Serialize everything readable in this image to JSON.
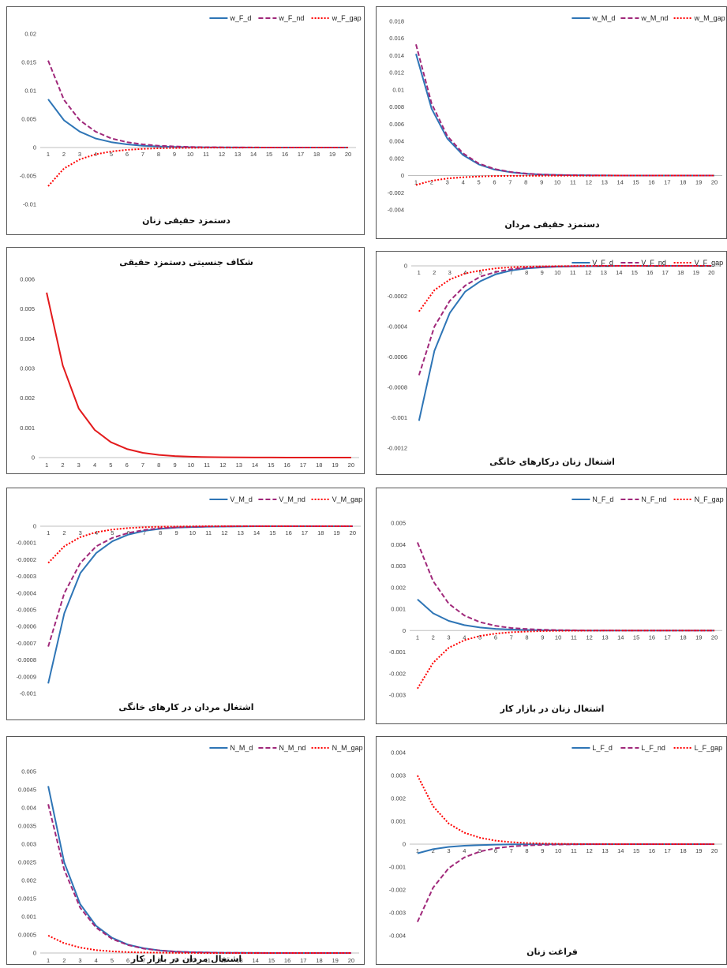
{
  "chart_data": [
    {
      "type": "line",
      "title": "دستمزد حقیقی زنان",
      "x": [
        1,
        2,
        3,
        4,
        5,
        6,
        7,
        8,
        9,
        10,
        11,
        12,
        13,
        14,
        15,
        16,
        17,
        18,
        19,
        20
      ],
      "ylim": [
        -0.01,
        0.02
      ],
      "yticks": [
        -0.01,
        -0.005,
        0,
        0.005,
        0.01,
        0.015,
        0.02
      ],
      "ytick_labels": [
        "-0.01",
        "-0.005",
        "0",
        "0.005",
        "0.01",
        "0.015",
        "0.02"
      ],
      "legend": "top-right",
      "series": [
        {
          "name": "w_F_d",
          "style": "solid",
          "color": "#2e75b6",
          "values": [
            0.0085,
            0.0048,
            0.0028,
            0.0016,
            0.00095,
            0.00055,
            0.00032,
            0.00019,
            0.00011,
            6e-05,
            3.5e-05,
            2e-05,
            1e-05,
            6e-06,
            3e-06,
            2e-06,
            1e-06,
            0,
            0,
            0
          ]
        },
        {
          "name": "w_F_nd",
          "style": "dashed",
          "color": "#a0287a",
          "values": [
            0.0153,
            0.0084,
            0.0048,
            0.0028,
            0.0016,
            0.00095,
            0.00055,
            0.00032,
            0.00019,
            0.00011,
            6e-05,
            3.5e-05,
            2e-05,
            1e-05,
            6e-06,
            3e-06,
            2e-06,
            1e-06,
            0,
            0
          ]
        },
        {
          "name": "w_F_gap",
          "style": "dotted",
          "color": "#ff0000",
          "values": [
            -0.0068,
            -0.0037,
            -0.0021,
            -0.0012,
            -0.0007,
            -0.0004,
            -0.00023,
            -0.00013,
            -8e-05,
            -5e-05,
            -3e-05,
            -1.5e-05,
            -8e-06,
            -4e-06,
            -2e-06,
            -1e-06,
            0,
            0,
            0,
            0
          ]
        }
      ]
    },
    {
      "type": "line",
      "title": "دستمزد حقیقی مردان",
      "x": [
        1,
        2,
        3,
        4,
        5,
        6,
        7,
        8,
        9,
        10,
        11,
        12,
        13,
        14,
        15,
        16,
        17,
        18,
        19,
        20
      ],
      "ylim": [
        -0.004,
        0.018
      ],
      "yticks": [
        -0.004,
        -0.002,
        0,
        0.002,
        0.004,
        0.006,
        0.008,
        0.01,
        0.012,
        0.014,
        0.016,
        0.018
      ],
      "ytick_labels": [
        "-0.004",
        "-0.002",
        "0",
        "0.002",
        "0.004",
        "0.006",
        "0.008",
        "0.01",
        "0.012",
        "0.014",
        "0.016",
        "0.018"
      ],
      "legend": "top-right",
      "series": [
        {
          "name": "w_M_d",
          "style": "solid",
          "color": "#2e75b6",
          "values": [
            0.0142,
            0.0078,
            0.0043,
            0.0024,
            0.0013,
            0.0007,
            0.0004,
            0.00022,
            0.00012,
            7e-05,
            4e-05,
            2e-05,
            1e-05,
            6e-06,
            3e-06,
            2e-06,
            1e-06,
            0,
            0,
            0
          ]
        },
        {
          "name": "w_M_nd",
          "style": "dashed",
          "color": "#a0287a",
          "values": [
            0.0153,
            0.0084,
            0.0046,
            0.0026,
            0.0014,
            0.00078,
            0.00043,
            0.00024,
            0.00013,
            7e-05,
            4e-05,
            2e-05,
            1e-05,
            6e-06,
            3e-06,
            2e-06,
            1e-06,
            0,
            0,
            0
          ]
        },
        {
          "name": "w_M_gap",
          "style": "dotted",
          "color": "#ff0000",
          "values": [
            -0.0011,
            -0.0006,
            -0.00034,
            -0.0002,
            -0.00011,
            -6e-05,
            -3e-05,
            -2e-05,
            -1e-05,
            -5e-06,
            -3e-06,
            -1e-06,
            0,
            0,
            0,
            0,
            0,
            0,
            0,
            0
          ]
        }
      ]
    },
    {
      "type": "line",
      "title": "شکاف جنسیتی دستمزد حقیقی",
      "x": [
        1,
        2,
        3,
        4,
        5,
        6,
        7,
        8,
        9,
        10,
        11,
        12,
        13,
        14,
        15,
        16,
        17,
        18,
        19,
        20
      ],
      "ylim": [
        0,
        0.006
      ],
      "yticks": [
        0,
        0.001,
        0.002,
        0.003,
        0.004,
        0.005,
        0.006
      ],
      "ytick_labels": [
        "0",
        "0.001",
        "0.002",
        "0.003",
        "0.004",
        "0.005",
        "0.006"
      ],
      "legend": "none",
      "series": [
        {
          "style": "solid",
          "color": "#e31a1c",
          "values": [
            0.00555,
            0.0031,
            0.00165,
            0.00093,
            0.00052,
            0.00029,
            0.00016,
            9e-05,
            5e-05,
            3e-05,
            1.7e-05,
            1e-05,
            5e-06,
            3e-06,
            2e-06,
            1e-06,
            0,
            0,
            0,
            0
          ]
        }
      ]
    },
    {
      "type": "line",
      "title": "اشتغال زنان درکارهای خانگی",
      "x": [
        1,
        2,
        3,
        4,
        5,
        6,
        7,
        8,
        9,
        10,
        11,
        12,
        13,
        14,
        15,
        16,
        17,
        18,
        19,
        20
      ],
      "ylim": [
        -0.0012,
        0
      ],
      "yticks": [
        -0.0012,
        -0.001,
        -0.0008,
        -0.0006,
        -0.0004,
        -0.0002,
        0
      ],
      "ytick_labels": [
        "-0.0012",
        "-0.001",
        "-0.0008",
        "-0.0006",
        "-0.0004",
        "-0.0002",
        "0"
      ],
      "legend": "top-right",
      "series": [
        {
          "name": "V_F_d",
          "style": "solid",
          "color": "#2e75b6",
          "values": [
            -0.00102,
            -0.00056,
            -0.00031,
            -0.00017,
            -0.0001,
            -5.5e-05,
            -3e-05,
            -1.7e-05,
            -1e-05,
            -5e-06,
            -3e-06,
            -2e-06,
            -1e-06,
            0,
            0,
            0,
            0,
            0,
            0,
            0
          ]
        },
        {
          "name": "V_F_nd",
          "style": "dashed",
          "color": "#a0287a",
          "values": [
            -0.00072,
            -0.0004,
            -0.00023,
            -0.00013,
            -7e-05,
            -4e-05,
            -2.2e-05,
            -1.2e-05,
            -7e-06,
            -4e-06,
            -2e-06,
            -1e-06,
            0,
            0,
            0,
            0,
            0,
            0,
            0,
            0
          ]
        },
        {
          "name": "V_F_gap",
          "style": "dotted",
          "color": "#ff0000",
          "values": [
            -0.0003,
            -0.00016,
            -9e-05,
            -5e-05,
            -3e-05,
            -1.6e-05,
            -9e-06,
            -5e-06,
            -3e-06,
            -2e-06,
            -1e-06,
            0,
            0,
            0,
            0,
            0,
            0,
            0,
            0,
            0
          ]
        }
      ]
    },
    {
      "type": "line",
      "title": "اشتغال مردان در کارهای خانگی",
      "x": [
        1,
        2,
        3,
        4,
        5,
        6,
        7,
        8,
        9,
        10,
        11,
        12,
        13,
        14,
        15,
        16,
        17,
        18,
        19,
        20
      ],
      "ylim": [
        -0.001,
        0
      ],
      "yticks": [
        -0.001,
        -0.0009,
        -0.0008,
        -0.0007,
        -0.0006,
        -0.0005,
        -0.0004,
        -0.0003,
        -0.0002,
        -0.0001,
        0
      ],
      "ytick_labels": [
        "-0.001",
        "-0.0009",
        "-0.0008",
        "-0.0007",
        "-0.0006",
        "-0.0005",
        "-0.0004",
        "-0.0003",
        "-0.0002",
        "-0.0001",
        "0"
      ],
      "legend": "top-right",
      "series": [
        {
          "name": "V_M_d",
          "style": "solid",
          "color": "#2e75b6",
          "values": [
            -0.00094,
            -0.00052,
            -0.00028,
            -0.00016,
            -9e-05,
            -5e-05,
            -2.8e-05,
            -1.5e-05,
            -8e-06,
            -5e-06,
            -3e-06,
            -2e-06,
            -1e-06,
            0,
            0,
            0,
            0,
            0,
            0,
            0
          ]
        },
        {
          "name": "V_M_nd",
          "style": "dashed",
          "color": "#a0287a",
          "values": [
            -0.00072,
            -0.0004,
            -0.00022,
            -0.00012,
            -7e-05,
            -4e-05,
            -2.2e-05,
            -1.2e-05,
            -7e-06,
            -4e-06,
            -2e-06,
            -1e-06,
            0,
            0,
            0,
            0,
            0,
            0,
            0,
            0
          ]
        },
        {
          "name": "V_M_gap",
          "style": "dotted",
          "color": "#ff0000",
          "values": [
            -0.00022,
            -0.00012,
            -6.5e-05,
            -3.6e-05,
            -2e-05,
            -1.1e-05,
            -6e-06,
            -3e-06,
            -2e-06,
            -1e-06,
            0,
            0,
            0,
            0,
            0,
            0,
            0,
            0,
            0,
            0
          ]
        }
      ]
    },
    {
      "type": "line",
      "title": "اشتغال زنان در بازار کار",
      "x": [
        1,
        2,
        3,
        4,
        5,
        6,
        7,
        8,
        9,
        10,
        11,
        12,
        13,
        14,
        15,
        16,
        17,
        18,
        19,
        20
      ],
      "ylim": [
        -0.003,
        0.005
      ],
      "yticks": [
        -0.003,
        -0.002,
        -0.001,
        0,
        0.001,
        0.002,
        0.003,
        0.004,
        0.005
      ],
      "ytick_labels": [
        "-0.003",
        "-0.002",
        "-0.001",
        "0",
        "0.001",
        "0.002",
        "0.003",
        "0.004",
        "0.005"
      ],
      "legend": "top-right",
      "series": [
        {
          "name": "N_F_d",
          "style": "solid",
          "color": "#2e75b6",
          "values": [
            0.00145,
            0.0008,
            0.00045,
            0.00025,
            0.00014,
            8e-05,
            4.5e-05,
            2.5e-05,
            1.4e-05,
            8e-06,
            4e-06,
            2e-06,
            1e-06,
            0,
            0,
            0,
            0,
            0,
            0,
            0
          ]
        },
        {
          "name": "N_F_nd",
          "style": "dashed",
          "color": "#a0287a",
          "values": [
            0.0041,
            0.0023,
            0.00125,
            0.0007,
            0.00039,
            0.00022,
            0.00012,
            7e-05,
            4e-05,
            2.2e-05,
            1.2e-05,
            7e-06,
            4e-06,
            2e-06,
            1e-06,
            0,
            0,
            0,
            0,
            0
          ]
        },
        {
          "name": "N_F_gap",
          "style": "dotted",
          "color": "#ff0000",
          "values": [
            -0.0027,
            -0.0015,
            -0.0008,
            -0.00045,
            -0.00025,
            -0.00014,
            -8e-05,
            -4.5e-05,
            -2.5e-05,
            -1.4e-05,
            -8e-06,
            -4e-06,
            -2e-06,
            -1e-06,
            0,
            0,
            0,
            0,
            0,
            0
          ]
        }
      ]
    },
    {
      "type": "line",
      "title": "اشتغال مردان در بازار کار",
      "x": [
        1,
        2,
        3,
        4,
        5,
        6,
        7,
        8,
        9,
        10,
        11,
        12,
        13,
        14,
        15,
        16,
        17,
        18,
        19,
        20
      ],
      "ylim": [
        0,
        0.005
      ],
      "yticks": [
        0,
        0.0005,
        0.001,
        0.0015,
        0.002,
        0.0025,
        0.003,
        0.0035,
        0.004,
        0.0045,
        0.005
      ],
      "ytick_labels": [
        "0",
        "0.0005",
        "0.001",
        "0.0015",
        "0.002",
        "0.0025",
        "0.003",
        "0.0035",
        "0.004",
        "0.0045",
        "0.005"
      ],
      "legend": "top-right",
      "series": [
        {
          "name": "N_M_d",
          "style": "solid",
          "color": "#2e75b6",
          "values": [
            0.0046,
            0.0025,
            0.00135,
            0.00075,
            0.00042,
            0.00023,
            0.00013,
            7e-05,
            4e-05,
            2.2e-05,
            1.2e-05,
            7e-06,
            4e-06,
            2e-06,
            1e-06,
            0,
            0,
            0,
            0,
            0
          ]
        },
        {
          "name": "N_M_nd",
          "style": "dashed",
          "color": "#a0287a",
          "values": [
            0.0041,
            0.0023,
            0.00125,
            0.0007,
            0.00039,
            0.00022,
            0.00012,
            7e-05,
            4e-05,
            2.2e-05,
            1.2e-05,
            7e-06,
            4e-06,
            2e-06,
            1e-06,
            0,
            0,
            0,
            0,
            0
          ]
        },
        {
          "name": "N_M_gap",
          "style": "dotted",
          "color": "#ff0000",
          "values": [
            0.00048,
            0.00027,
            0.00015,
            8e-05,
            4.5e-05,
            2.5e-05,
            1.4e-05,
            8e-06,
            4e-06,
            2e-06,
            1e-06,
            0,
            0,
            0,
            0,
            0,
            0,
            0,
            0,
            0
          ]
        }
      ]
    },
    {
      "type": "line",
      "title": "فراغت زنان",
      "x": [
        1,
        2,
        3,
        4,
        5,
        6,
        7,
        8,
        9,
        10,
        11,
        12,
        13,
        14,
        15,
        16,
        17,
        18,
        19,
        20
      ],
      "ylim": [
        -0.004,
        0.004
      ],
      "yticks": [
        -0.004,
        -0.003,
        -0.002,
        -0.001,
        0,
        0.001,
        0.002,
        0.003,
        0.004
      ],
      "ytick_labels": [
        "-0.004",
        "-0.003",
        "-0.002",
        "-0.001",
        "0",
        "0.001",
        "0.002",
        "0.003",
        "0.004"
      ],
      "legend": "top-right",
      "series": [
        {
          "name": "L_F_d",
          "style": "solid",
          "color": "#2e75b6",
          "values": [
            -0.0004,
            -0.00022,
            -0.00012,
            -7e-05,
            -4e-05,
            -2.2e-05,
            -1.2e-05,
            -7e-06,
            -4e-06,
            -2e-06,
            -1e-06,
            0,
            0,
            0,
            0,
            0,
            0,
            0,
            0,
            0
          ]
        },
        {
          "name": "L_F_nd",
          "style": "dashed",
          "color": "#a0287a",
          "values": [
            -0.0034,
            -0.0019,
            -0.00105,
            -0.00058,
            -0.00032,
            -0.00018,
            -0.0001,
            -5.5e-05,
            -3e-05,
            -1.7e-05,
            -1e-05,
            -5e-06,
            -3e-06,
            -2e-06,
            -1e-06,
            0,
            0,
            0,
            0,
            0
          ]
        },
        {
          "name": "L_F_gap",
          "style": "dotted",
          "color": "#ff0000",
          "values": [
            0.003,
            0.00165,
            0.0009,
            0.0005,
            0.00028,
            0.00015,
            8.5e-05,
            4.7e-05,
            2.6e-05,
            1.4e-05,
            8e-06,
            4e-06,
            2e-06,
            1e-06,
            0,
            0,
            0,
            0,
            0,
            0
          ]
        }
      ]
    }
  ]
}
